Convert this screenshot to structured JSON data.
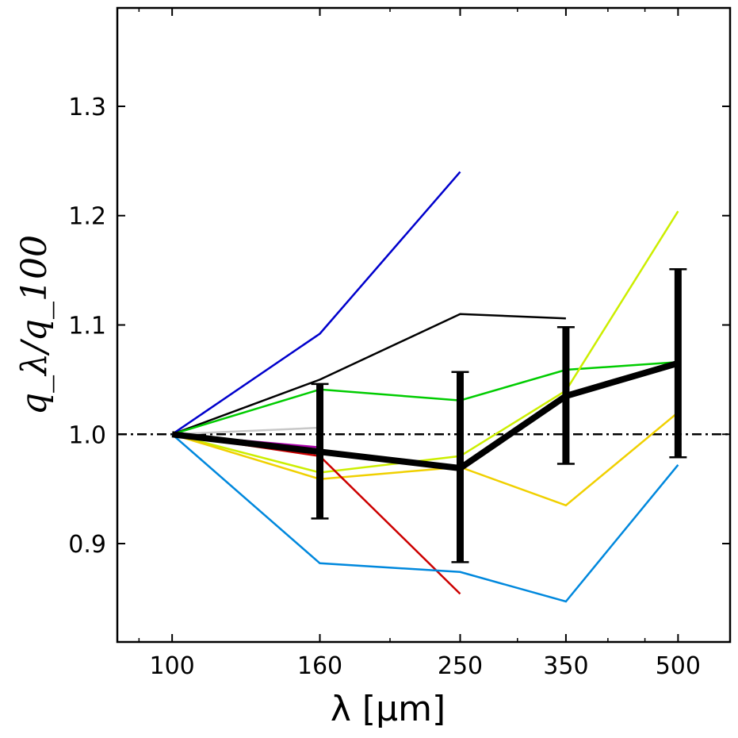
{
  "chart_data": {
    "type": "line",
    "title": "",
    "xlabel": "λ [μm]",
    "ylabel": "q_λ/q_100",
    "xscale": "log",
    "xlim": [
      84,
      590
    ],
    "ylim": [
      0.81,
      1.39
    ],
    "xticks": [
      100,
      160,
      250,
      350,
      500
    ],
    "xtick_labels": [
      "100",
      "160",
      "250",
      "350",
      "500"
    ],
    "yticks": [
      0.9,
      1.0,
      1.1,
      1.2,
      1.3
    ],
    "ytick_labels": [
      "0.9",
      "1.0",
      "1.1",
      "1.2",
      "1.3"
    ],
    "reference_line": {
      "y": 1.0,
      "style": "dash-dot",
      "color": "#000000"
    },
    "series": [
      {
        "name": "blue",
        "color": "#0000cc",
        "x": [
          100,
          160,
          250
        ],
        "y": [
          1.0,
          1.092,
          1.24
        ]
      },
      {
        "name": "black-thin",
        "color": "#000000",
        "x": [
          100,
          160,
          250,
          350
        ],
        "y": [
          1.0,
          1.05,
          1.11,
          1.106
        ]
      },
      {
        "name": "green",
        "color": "#00cc00",
        "x": [
          100,
          160,
          250,
          350,
          500
        ],
        "y": [
          1.0,
          1.041,
          1.031,
          1.059,
          1.066
        ]
      },
      {
        "name": "light-gray",
        "color": "#c8c8c8",
        "x": [
          100,
          160
        ],
        "y": [
          1.0,
          1.006
        ]
      },
      {
        "name": "magenta",
        "color": "#aa00aa",
        "x": [
          100,
          160
        ],
        "y": [
          1.0,
          0.988
        ]
      },
      {
        "name": "yellow-green",
        "color": "#ccee00",
        "x": [
          100,
          160,
          250,
          350,
          500
        ],
        "y": [
          1.0,
          0.965,
          0.98,
          1.04,
          1.204
        ]
      },
      {
        "name": "gold",
        "color": "#f0d000",
        "x": [
          100,
          160,
          250,
          350,
          500
        ],
        "y": [
          1.0,
          0.959,
          0.97,
          0.935,
          1.02
        ]
      },
      {
        "name": "red",
        "color": "#cc0000",
        "x": [
          100,
          160,
          250
        ],
        "y": [
          1.0,
          0.98,
          0.854
        ]
      },
      {
        "name": "teal-blue",
        "color": "#0088dd",
        "x": [
          100,
          160,
          250,
          350,
          500
        ],
        "y": [
          1.0,
          0.882,
          0.874,
          0.847,
          0.972
        ]
      }
    ],
    "mean": {
      "name": "mean",
      "color": "#000000",
      "x": [
        100,
        160,
        250,
        350,
        500
      ],
      "y": [
        1.0,
        0.984,
        0.969,
        1.035,
        1.065
      ],
      "errors": [
        {
          "x": 160,
          "low": 0.923,
          "high": 1.046
        },
        {
          "x": 250,
          "low": 0.883,
          "high": 1.057
        },
        {
          "x": 350,
          "low": 0.973,
          "high": 1.098
        },
        {
          "x": 500,
          "low": 0.979,
          "high": 1.151
        }
      ]
    }
  }
}
